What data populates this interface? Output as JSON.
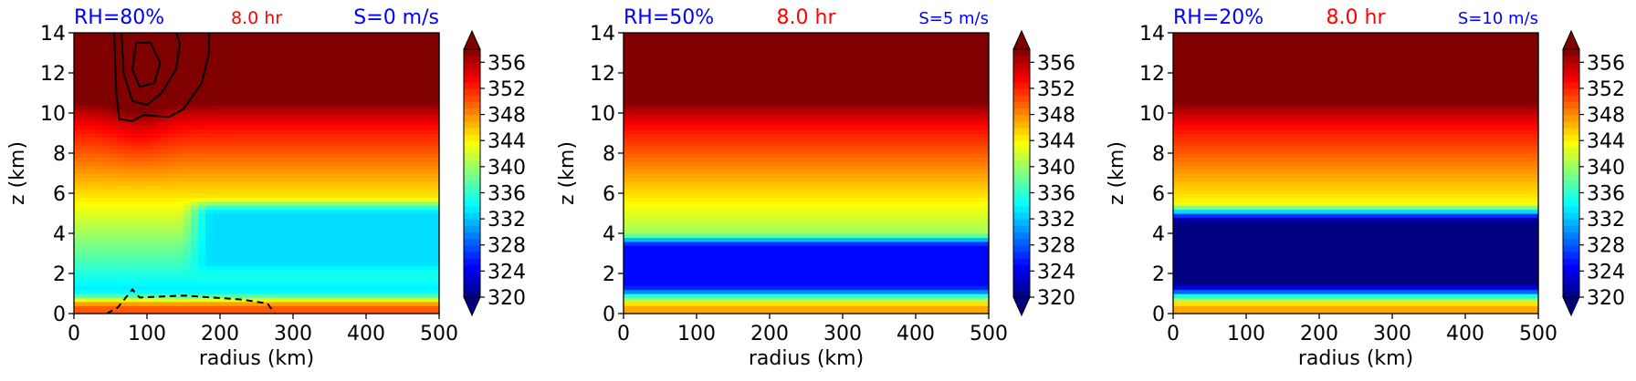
{
  "chart_data": [
    {
      "type": "heatmap",
      "title_left": "RH=80%",
      "title_center": "8.0 hr",
      "title_right": "S=0 m/s",
      "title_colors": {
        "left": "#0000ff",
        "center": "#ff0000",
        "right": "#0000ff"
      },
      "xlabel": "radius (km)",
      "ylabel": "z (km)",
      "xlim": [
        0,
        500
      ],
      "ylim": [
        0,
        14
      ],
      "xticks": [
        "0",
        "100",
        "200",
        "300",
        "400",
        "500"
      ],
      "yticks": [
        "0",
        "2",
        "4",
        "6",
        "8",
        "10",
        "12",
        "14"
      ],
      "colorbar": {
        "min": 320,
        "max": 358,
        "ticks": [
          "320",
          "324",
          "328",
          "332",
          "336",
          "340",
          "344",
          "348",
          "352",
          "356"
        ],
        "extend": "both",
        "colormap": "jet"
      },
      "surface_theta": 350,
      "min_layer": {
        "theta": 333,
        "z_bottom": 2.3,
        "z_top": 5.3,
        "r_start": 160
      },
      "contours": true
    },
    {
      "type": "heatmap",
      "title_left": "RH=50%",
      "title_center": "8.0 hr",
      "title_right": "S=5 m/s",
      "title_colors": {
        "left": "#0000ff",
        "center": "#ff0000",
        "right": "#0000ff"
      },
      "xlabel": "radius (km)",
      "ylabel": "z (km)",
      "xlim": [
        0,
        500
      ],
      "ylim": [
        0,
        14
      ],
      "xticks": [
        "0",
        "100",
        "200",
        "300",
        "400",
        "500"
      ],
      "yticks": [
        "0",
        "2",
        "4",
        "6",
        "8",
        "10",
        "12",
        "14"
      ],
      "colorbar": {
        "min": 320,
        "max": 358,
        "ticks": [
          "320",
          "324",
          "328",
          "332",
          "336",
          "340",
          "344",
          "348",
          "352",
          "356"
        ],
        "extend": "both",
        "colormap": "jet"
      },
      "surface_theta": 347,
      "min_layer": {
        "theta": 325,
        "z_bottom": 1.3,
        "z_top": 3.5,
        "r_start": 0
      },
      "contours": false
    },
    {
      "type": "heatmap",
      "title_left": "RH=20%",
      "title_center": "8.0 hr",
      "title_right": "S=10 m/s",
      "title_colors": {
        "left": "#0000ff",
        "center": "#ff0000",
        "right": "#0000ff"
      },
      "xlabel": "radius (km)",
      "ylabel": "z (km)",
      "xlim": [
        0,
        500
      ],
      "ylim": [
        0,
        14
      ],
      "xticks": [
        "0",
        "100",
        "200",
        "300",
        "400",
        "500"
      ],
      "yticks": [
        "0",
        "2",
        "4",
        "6",
        "8",
        "10",
        "12",
        "14"
      ],
      "colorbar": {
        "min": 320,
        "max": 358,
        "ticks": [
          "320",
          "324",
          "328",
          "332",
          "336",
          "340",
          "344",
          "348",
          "352",
          "356"
        ],
        "extend": "both",
        "colormap": "jet"
      },
      "surface_theta": 347,
      "min_layer": {
        "theta": 319,
        "z_bottom": 1.2,
        "z_top": 5.0,
        "r_start": 0
      },
      "contours": false
    }
  ]
}
